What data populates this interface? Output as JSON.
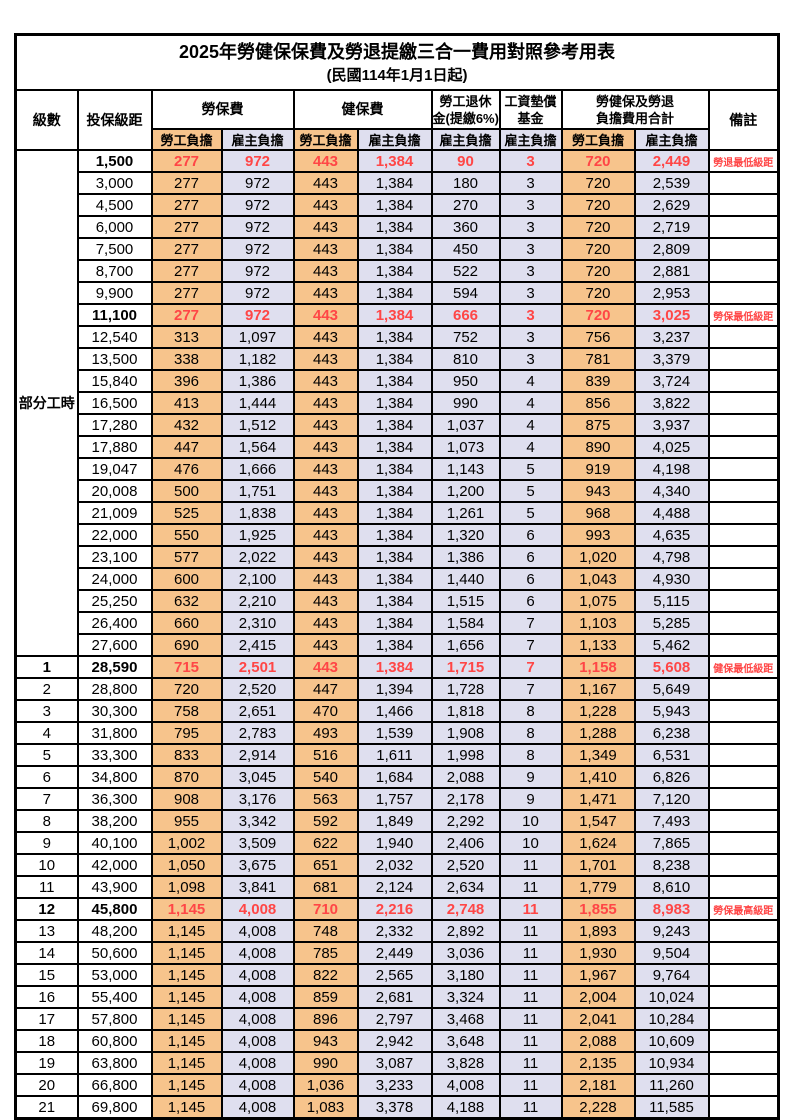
{
  "title": "2025年勞健保保費及勞退提繳三合一費用對照參考用表",
  "subtitle": "(民國114年1月1日起)",
  "colors": {
    "employee_bg": "#F7C48C",
    "employer_bg": "#DFDFEF",
    "highlight_text": "#FF4646",
    "border": "#000000"
  },
  "header": {
    "level": "級數",
    "bracket": "投保級距",
    "labor_fee": "勞保費",
    "health_fee": "健保費",
    "pension_line1": "勞工退休",
    "pension_line2": "金(提繳6%)",
    "wage_fund_line1": "工資墊償",
    "wage_fund_line2": "基金",
    "total_line1": "勞健保及勞退",
    "total_line2": "負擔費用合計",
    "note": "備註",
    "employee_label": "勞工負擔",
    "employer_label": "雇主負擔"
  },
  "part_time_label": "部分工時",
  "part_time_rowspan": 23,
  "table": {
    "rows": [
      {
        "level": "",
        "bracket": "1,500",
        "labor_emp": "277",
        "labor_er": "972",
        "health_emp": "443",
        "health_er": "1,384",
        "pension": "90",
        "wage_fund": "3",
        "total_emp": "720",
        "total_er": "2,449",
        "note": "勞退最低級距",
        "highlight": true
      },
      {
        "level": "",
        "bracket": "3,000",
        "labor_emp": "277",
        "labor_er": "972",
        "health_emp": "443",
        "health_er": "1,384",
        "pension": "180",
        "wage_fund": "3",
        "total_emp": "720",
        "total_er": "2,539",
        "note": "",
        "highlight": false
      },
      {
        "level": "",
        "bracket": "4,500",
        "labor_emp": "277",
        "labor_er": "972",
        "health_emp": "443",
        "health_er": "1,384",
        "pension": "270",
        "wage_fund": "3",
        "total_emp": "720",
        "total_er": "2,629",
        "note": "",
        "highlight": false
      },
      {
        "level": "",
        "bracket": "6,000",
        "labor_emp": "277",
        "labor_er": "972",
        "health_emp": "443",
        "health_er": "1,384",
        "pension": "360",
        "wage_fund": "3",
        "total_emp": "720",
        "total_er": "2,719",
        "note": "",
        "highlight": false
      },
      {
        "level": "",
        "bracket": "7,500",
        "labor_emp": "277",
        "labor_er": "972",
        "health_emp": "443",
        "health_er": "1,384",
        "pension": "450",
        "wage_fund": "3",
        "total_emp": "720",
        "total_er": "2,809",
        "note": "",
        "highlight": false
      },
      {
        "level": "",
        "bracket": "8,700",
        "labor_emp": "277",
        "labor_er": "972",
        "health_emp": "443",
        "health_er": "1,384",
        "pension": "522",
        "wage_fund": "3",
        "total_emp": "720",
        "total_er": "2,881",
        "note": "",
        "highlight": false
      },
      {
        "level": "",
        "bracket": "9,900",
        "labor_emp": "277",
        "labor_er": "972",
        "health_emp": "443",
        "health_er": "1,384",
        "pension": "594",
        "wage_fund": "3",
        "total_emp": "720",
        "total_er": "2,953",
        "note": "",
        "highlight": false
      },
      {
        "level": "",
        "bracket": "11,100",
        "labor_emp": "277",
        "labor_er": "972",
        "health_emp": "443",
        "health_er": "1,384",
        "pension": "666",
        "wage_fund": "3",
        "total_emp": "720",
        "total_er": "3,025",
        "note": "勞保最低級距",
        "highlight": true
      },
      {
        "level": "",
        "bracket": "12,540",
        "labor_emp": "313",
        "labor_er": "1,097",
        "health_emp": "443",
        "health_er": "1,384",
        "pension": "752",
        "wage_fund": "3",
        "total_emp": "756",
        "total_er": "3,237",
        "note": "",
        "highlight": false
      },
      {
        "level": "",
        "bracket": "13,500",
        "labor_emp": "338",
        "labor_er": "1,182",
        "health_emp": "443",
        "health_er": "1,384",
        "pension": "810",
        "wage_fund": "3",
        "total_emp": "781",
        "total_er": "3,379",
        "note": "",
        "highlight": false
      },
      {
        "level": "",
        "bracket": "15,840",
        "labor_emp": "396",
        "labor_er": "1,386",
        "health_emp": "443",
        "health_er": "1,384",
        "pension": "950",
        "wage_fund": "4",
        "total_emp": "839",
        "total_er": "3,724",
        "note": "",
        "highlight": false
      },
      {
        "level": "",
        "bracket": "16,500",
        "labor_emp": "413",
        "labor_er": "1,444",
        "health_emp": "443",
        "health_er": "1,384",
        "pension": "990",
        "wage_fund": "4",
        "total_emp": "856",
        "total_er": "3,822",
        "note": "",
        "highlight": false
      },
      {
        "level": "",
        "bracket": "17,280",
        "labor_emp": "432",
        "labor_er": "1,512",
        "health_emp": "443",
        "health_er": "1,384",
        "pension": "1,037",
        "wage_fund": "4",
        "total_emp": "875",
        "total_er": "3,937",
        "note": "",
        "highlight": false
      },
      {
        "level": "",
        "bracket": "17,880",
        "labor_emp": "447",
        "labor_er": "1,564",
        "health_emp": "443",
        "health_er": "1,384",
        "pension": "1,073",
        "wage_fund": "4",
        "total_emp": "890",
        "total_er": "4,025",
        "note": "",
        "highlight": false
      },
      {
        "level": "",
        "bracket": "19,047",
        "labor_emp": "476",
        "labor_er": "1,666",
        "health_emp": "443",
        "health_er": "1,384",
        "pension": "1,143",
        "wage_fund": "5",
        "total_emp": "919",
        "total_er": "4,198",
        "note": "",
        "highlight": false
      },
      {
        "level": "",
        "bracket": "20,008",
        "labor_emp": "500",
        "labor_er": "1,751",
        "health_emp": "443",
        "health_er": "1,384",
        "pension": "1,200",
        "wage_fund": "5",
        "total_emp": "943",
        "total_er": "4,340",
        "note": "",
        "highlight": false
      },
      {
        "level": "",
        "bracket": "21,009",
        "labor_emp": "525",
        "labor_er": "1,838",
        "health_emp": "443",
        "health_er": "1,384",
        "pension": "1,261",
        "wage_fund": "5",
        "total_emp": "968",
        "total_er": "4,488",
        "note": "",
        "highlight": false
      },
      {
        "level": "",
        "bracket": "22,000",
        "labor_emp": "550",
        "labor_er": "1,925",
        "health_emp": "443",
        "health_er": "1,384",
        "pension": "1,320",
        "wage_fund": "6",
        "total_emp": "993",
        "total_er": "4,635",
        "note": "",
        "highlight": false
      },
      {
        "level": "",
        "bracket": "23,100",
        "labor_emp": "577",
        "labor_er": "2,022",
        "health_emp": "443",
        "health_er": "1,384",
        "pension": "1,386",
        "wage_fund": "6",
        "total_emp": "1,020",
        "total_er": "4,798",
        "note": "",
        "highlight": false
      },
      {
        "level": "",
        "bracket": "24,000",
        "labor_emp": "600",
        "labor_er": "2,100",
        "health_emp": "443",
        "health_er": "1,384",
        "pension": "1,440",
        "wage_fund": "6",
        "total_emp": "1,043",
        "total_er": "4,930",
        "note": "",
        "highlight": false
      },
      {
        "level": "",
        "bracket": "25,250",
        "labor_emp": "632",
        "labor_er": "2,210",
        "health_emp": "443",
        "health_er": "1,384",
        "pension": "1,515",
        "wage_fund": "6",
        "total_emp": "1,075",
        "total_er": "5,115",
        "note": "",
        "highlight": false
      },
      {
        "level": "",
        "bracket": "26,400",
        "labor_emp": "660",
        "labor_er": "2,310",
        "health_emp": "443",
        "health_er": "1,384",
        "pension": "1,584",
        "wage_fund": "7",
        "total_emp": "1,103",
        "total_er": "5,285",
        "note": "",
        "highlight": false
      },
      {
        "level": "",
        "bracket": "27,600",
        "labor_emp": "690",
        "labor_er": "2,415",
        "health_emp": "443",
        "health_er": "1,384",
        "pension": "1,656",
        "wage_fund": "7",
        "total_emp": "1,133",
        "total_er": "5,462",
        "note": "",
        "highlight": false
      },
      {
        "level": "1",
        "bracket": "28,590",
        "labor_emp": "715",
        "labor_er": "2,501",
        "health_emp": "443",
        "health_er": "1,384",
        "pension": "1,715",
        "wage_fund": "7",
        "total_emp": "1,158",
        "total_er": "5,608",
        "note": "健保最低級距",
        "highlight": true
      },
      {
        "level": "2",
        "bracket": "28,800",
        "labor_emp": "720",
        "labor_er": "2,520",
        "health_emp": "447",
        "health_er": "1,394",
        "pension": "1,728",
        "wage_fund": "7",
        "total_emp": "1,167",
        "total_er": "5,649",
        "note": "",
        "highlight": false
      },
      {
        "level": "3",
        "bracket": "30,300",
        "labor_emp": "758",
        "labor_er": "2,651",
        "health_emp": "470",
        "health_er": "1,466",
        "pension": "1,818",
        "wage_fund": "8",
        "total_emp": "1,228",
        "total_er": "5,943",
        "note": "",
        "highlight": false
      },
      {
        "level": "4",
        "bracket": "31,800",
        "labor_emp": "795",
        "labor_er": "2,783",
        "health_emp": "493",
        "health_er": "1,539",
        "pension": "1,908",
        "wage_fund": "8",
        "total_emp": "1,288",
        "total_er": "6,238",
        "note": "",
        "highlight": false
      },
      {
        "level": "5",
        "bracket": "33,300",
        "labor_emp": "833",
        "labor_er": "2,914",
        "health_emp": "516",
        "health_er": "1,611",
        "pension": "1,998",
        "wage_fund": "8",
        "total_emp": "1,349",
        "total_er": "6,531",
        "note": "",
        "highlight": false
      },
      {
        "level": "6",
        "bracket": "34,800",
        "labor_emp": "870",
        "labor_er": "3,045",
        "health_emp": "540",
        "health_er": "1,684",
        "pension": "2,088",
        "wage_fund": "9",
        "total_emp": "1,410",
        "total_er": "6,826",
        "note": "",
        "highlight": false
      },
      {
        "level": "7",
        "bracket": "36,300",
        "labor_emp": "908",
        "labor_er": "3,176",
        "health_emp": "563",
        "health_er": "1,757",
        "pension": "2,178",
        "wage_fund": "9",
        "total_emp": "1,471",
        "total_er": "7,120",
        "note": "",
        "highlight": false
      },
      {
        "level": "8",
        "bracket": "38,200",
        "labor_emp": "955",
        "labor_er": "3,342",
        "health_emp": "592",
        "health_er": "1,849",
        "pension": "2,292",
        "wage_fund": "10",
        "total_emp": "1,547",
        "total_er": "7,493",
        "note": "",
        "highlight": false
      },
      {
        "level": "9",
        "bracket": "40,100",
        "labor_emp": "1,002",
        "labor_er": "3,509",
        "health_emp": "622",
        "health_er": "1,940",
        "pension": "2,406",
        "wage_fund": "10",
        "total_emp": "1,624",
        "total_er": "7,865",
        "note": "",
        "highlight": false
      },
      {
        "level": "10",
        "bracket": "42,000",
        "labor_emp": "1,050",
        "labor_er": "3,675",
        "health_emp": "651",
        "health_er": "2,032",
        "pension": "2,520",
        "wage_fund": "11",
        "total_emp": "1,701",
        "total_er": "8,238",
        "note": "",
        "highlight": false
      },
      {
        "level": "11",
        "bracket": "43,900",
        "labor_emp": "1,098",
        "labor_er": "3,841",
        "health_emp": "681",
        "health_er": "2,124",
        "pension": "2,634",
        "wage_fund": "11",
        "total_emp": "1,779",
        "total_er": "8,610",
        "note": "",
        "highlight": false
      },
      {
        "level": "12",
        "bracket": "45,800",
        "labor_emp": "1,145",
        "labor_er": "4,008",
        "health_emp": "710",
        "health_er": "2,216",
        "pension": "2,748",
        "wage_fund": "11",
        "total_emp": "1,855",
        "total_er": "8,983",
        "note": "勞保最高級距",
        "highlight": true
      },
      {
        "level": "13",
        "bracket": "48,200",
        "labor_emp": "1,145",
        "labor_er": "4,008",
        "health_emp": "748",
        "health_er": "2,332",
        "pension": "2,892",
        "wage_fund": "11",
        "total_emp": "1,893",
        "total_er": "9,243",
        "note": "",
        "highlight": false
      },
      {
        "level": "14",
        "bracket": "50,600",
        "labor_emp": "1,145",
        "labor_er": "4,008",
        "health_emp": "785",
        "health_er": "2,449",
        "pension": "3,036",
        "wage_fund": "11",
        "total_emp": "1,930",
        "total_er": "9,504",
        "note": "",
        "highlight": false
      },
      {
        "level": "15",
        "bracket": "53,000",
        "labor_emp": "1,145",
        "labor_er": "4,008",
        "health_emp": "822",
        "health_er": "2,565",
        "pension": "3,180",
        "wage_fund": "11",
        "total_emp": "1,967",
        "total_er": "9,764",
        "note": "",
        "highlight": false
      },
      {
        "level": "16",
        "bracket": "55,400",
        "labor_emp": "1,145",
        "labor_er": "4,008",
        "health_emp": "859",
        "health_er": "2,681",
        "pension": "3,324",
        "wage_fund": "11",
        "total_emp": "2,004",
        "total_er": "10,024",
        "note": "",
        "highlight": false
      },
      {
        "level": "17",
        "bracket": "57,800",
        "labor_emp": "1,145",
        "labor_er": "4,008",
        "health_emp": "896",
        "health_er": "2,797",
        "pension": "3,468",
        "wage_fund": "11",
        "total_emp": "2,041",
        "total_er": "10,284",
        "note": "",
        "highlight": false
      },
      {
        "level": "18",
        "bracket": "60,800",
        "labor_emp": "1,145",
        "labor_er": "4,008",
        "health_emp": "943",
        "health_er": "2,942",
        "pension": "3,648",
        "wage_fund": "11",
        "total_emp": "2,088",
        "total_er": "10,609",
        "note": "",
        "highlight": false
      },
      {
        "level": "19",
        "bracket": "63,800",
        "labor_emp": "1,145",
        "labor_er": "4,008",
        "health_emp": "990",
        "health_er": "3,087",
        "pension": "3,828",
        "wage_fund": "11",
        "total_emp": "2,135",
        "total_er": "10,934",
        "note": "",
        "highlight": false
      },
      {
        "level": "20",
        "bracket": "66,800",
        "labor_emp": "1,145",
        "labor_er": "4,008",
        "health_emp": "1,036",
        "health_er": "3,233",
        "pension": "4,008",
        "wage_fund": "11",
        "total_emp": "2,181",
        "total_er": "11,260",
        "note": "",
        "highlight": false
      },
      {
        "level": "21",
        "bracket": "69,800",
        "labor_emp": "1,145",
        "labor_er": "4,008",
        "health_emp": "1,083",
        "health_er": "3,378",
        "pension": "4,188",
        "wage_fund": "11",
        "total_emp": "2,228",
        "total_er": "11,585",
        "note": "",
        "highlight": false
      }
    ]
  }
}
